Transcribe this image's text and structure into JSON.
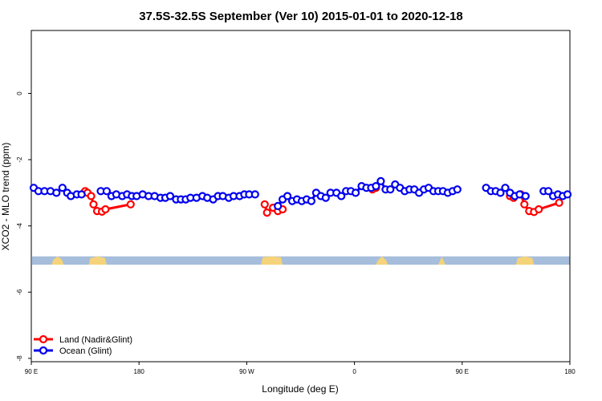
{
  "colors": {
    "land": "#ff0000",
    "ocean": "#0000ee",
    "map_ocean": "#a6bddb",
    "map_land": "#f5d37a"
  },
  "chart_data": {
    "type": "scatter",
    "title": "37.5S-32.5S September (Ver 10)   2015-01-01 to 2020-12-18",
    "xlabel": "Longitude (deg E)",
    "ylabel": "XCO2 - MLO trend (ppm)",
    "x_is_longitude_unwrapped": true,
    "xlim": [
      90,
      540
    ],
    "ylim": [
      -8.1,
      1.9
    ],
    "x_ticks": [
      {
        "value": 90,
        "label": "90 E"
      },
      {
        "value": 180,
        "label": "180"
      },
      {
        "value": 270,
        "label": "90 W"
      },
      {
        "value": 360,
        "label": "0"
      },
      {
        "value": 450,
        "label": "90 E"
      },
      {
        "value": 540,
        "label": "180"
      }
    ],
    "y_ticks": [
      {
        "value": 0,
        "label": "0"
      },
      {
        "value": -2,
        "label": "-2"
      },
      {
        "value": -4,
        "label": "-4"
      },
      {
        "value": -6,
        "label": "-6"
      },
      {
        "value": -8,
        "label": "-8"
      }
    ],
    "grid": false,
    "legend_position": "bottom-left",
    "map_strip": {
      "y_top": -4.92,
      "y_bottom": -5.17
    },
    "series": [
      {
        "name": "Land (Nadir&Glint)",
        "color_key": "land",
        "segments": [
          [
            [
              135,
              -2.95
            ],
            [
              137,
              -3.0
            ],
            [
              140,
              -3.1
            ],
            [
              142,
              -3.35
            ],
            [
              145,
              -3.55
            ],
            [
              149,
              -3.57
            ],
            [
              152,
              -3.5
            ],
            [
              173,
              -3.35
            ]
          ],
          [
            [
              285,
              -3.35
            ],
            [
              287,
              -3.6
            ],
            [
              292,
              -3.45
            ],
            [
              296,
              -3.55
            ],
            [
              300,
              -3.5
            ]
          ],
          [
            [
              375,
              -2.9
            ],
            [
              378,
              -2.85
            ]
          ],
          [
            [
              490,
              -3.1
            ],
            [
              493,
              -3.15
            ],
            [
              499,
              -3.05
            ],
            [
              502,
              -3.35
            ],
            [
              506,
              -3.55
            ],
            [
              510,
              -3.58
            ],
            [
              514,
              -3.5
            ],
            [
              531,
              -3.3
            ]
          ]
        ]
      },
      {
        "name": "Ocean (Glint)",
        "color_key": "ocean",
        "segments": [
          [
            [
              92,
              -2.85
            ],
            [
              96,
              -2.95
            ],
            [
              101,
              -2.95
            ],
            [
              106,
              -2.95
            ],
            [
              111,
              -3.0
            ],
            [
              116,
              -2.85
            ],
            [
              120,
              -3.0
            ],
            [
              123,
              -3.1
            ],
            [
              128,
              -3.05
            ],
            [
              132,
              -3.05
            ]
          ],
          [
            [
              148,
              -2.95
            ],
            [
              153,
              -2.95
            ],
            [
              157,
              -3.1
            ],
            [
              161,
              -3.05
            ],
            [
              166,
              -3.1
            ],
            [
              170,
              -3.05
            ],
            [
              174,
              -3.1
            ],
            [
              178,
              -3.1
            ],
            [
              183,
              -3.05
            ],
            [
              188,
              -3.1
            ],
            [
              193,
              -3.1
            ],
            [
              198,
              -3.15
            ],
            [
              202,
              -3.15
            ],
            [
              206,
              -3.1
            ],
            [
              211,
              -3.2
            ],
            [
              215,
              -3.2
            ],
            [
              219,
              -3.2
            ],
            [
              223,
              -3.15
            ],
            [
              228,
              -3.15
            ],
            [
              233,
              -3.1
            ],
            [
              237,
              -3.15
            ],
            [
              242,
              -3.2
            ],
            [
              246,
              -3.1
            ],
            [
              250,
              -3.1
            ],
            [
              255,
              -3.15
            ],
            [
              259,
              -3.1
            ],
            [
              264,
              -3.1
            ],
            [
              268,
              -3.05
            ],
            [
              272,
              -3.05
            ],
            [
              277,
              -3.05
            ]
          ],
          [
            [
              296,
              -3.4
            ],
            [
              300,
              -3.2
            ],
            [
              304,
              -3.1
            ],
            [
              308,
              -3.25
            ],
            [
              312,
              -3.2
            ],
            [
              316,
              -3.25
            ],
            [
              320,
              -3.2
            ],
            [
              324,
              -3.25
            ],
            [
              328,
              -3.0
            ],
            [
              332,
              -3.1
            ],
            [
              336,
              -3.15
            ],
            [
              340,
              -3.0
            ],
            [
              345,
              -3.0
            ],
            [
              349,
              -3.1
            ],
            [
              353,
              -2.95
            ],
            [
              357,
              -2.95
            ],
            [
              361,
              -3.0
            ],
            [
              366,
              -2.8
            ],
            [
              370,
              -2.85
            ],
            [
              374,
              -2.85
            ],
            [
              378,
              -2.8
            ],
            [
              382,
              -2.65
            ],
            [
              386,
              -2.9
            ],
            [
              390,
              -2.9
            ],
            [
              394,
              -2.75
            ],
            [
              398,
              -2.85
            ],
            [
              402,
              -2.95
            ],
            [
              406,
              -2.9
            ],
            [
              410,
              -2.9
            ],
            [
              414,
              -3.0
            ],
            [
              418,
              -2.9
            ],
            [
              422,
              -2.85
            ],
            [
              426,
              -2.95
            ],
            [
              430,
              -2.95
            ],
            [
              434,
              -2.95
            ],
            [
              438,
              -3.0
            ],
            [
              442,
              -2.95
            ],
            [
              446,
              -2.9
            ]
          ],
          [
            [
              470,
              -2.85
            ],
            [
              474,
              -2.95
            ],
            [
              478,
              -2.95
            ],
            [
              482,
              -3.0
            ],
            [
              486,
              -2.85
            ],
            [
              490,
              -3.0
            ],
            [
              494,
              -3.1
            ],
            [
              498,
              -3.05
            ],
            [
              503,
              -3.1
            ]
          ],
          [
            [
              518,
              -2.95
            ],
            [
              522,
              -2.95
            ],
            [
              526,
              -3.1
            ],
            [
              530,
              -3.05
            ],
            [
              534,
              -3.1
            ],
            [
              538,
              -3.05
            ]
          ]
        ]
      }
    ]
  }
}
